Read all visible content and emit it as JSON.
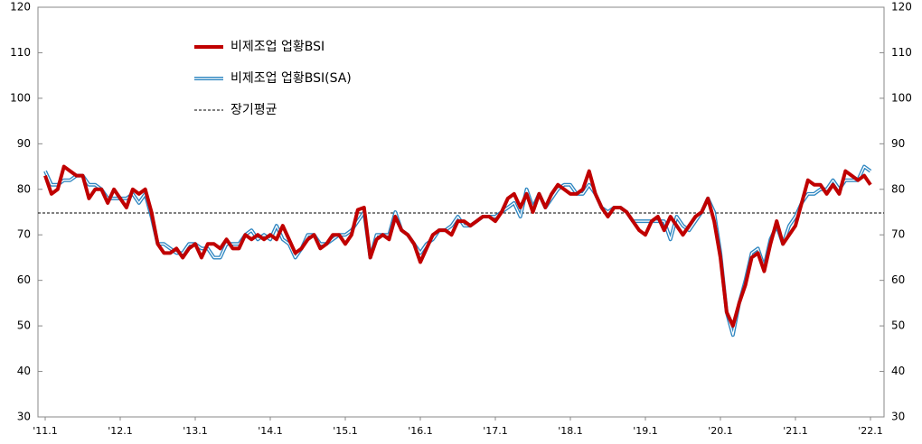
{
  "chart_data": {
    "type": "line",
    "categories": [
      "'11.1",
      null,
      null,
      null,
      null,
      null,
      null,
      null,
      null,
      null,
      null,
      null,
      "'12.1",
      null,
      null,
      null,
      null,
      null,
      null,
      null,
      null,
      null,
      null,
      null,
      "'13.1",
      null,
      null,
      null,
      null,
      null,
      null,
      null,
      null,
      null,
      null,
      null,
      "'14.1",
      null,
      null,
      null,
      null,
      null,
      null,
      null,
      null,
      null,
      null,
      null,
      "'15.1",
      null,
      null,
      null,
      null,
      null,
      null,
      null,
      null,
      null,
      null,
      null,
      "'16.1",
      null,
      null,
      null,
      null,
      null,
      null,
      null,
      null,
      null,
      null,
      null,
      "'17.1",
      null,
      null,
      null,
      null,
      null,
      null,
      null,
      null,
      null,
      null,
      null,
      "'18.1",
      null,
      null,
      null,
      null,
      null,
      null,
      null,
      null,
      null,
      null,
      null,
      "'19.1",
      null,
      null,
      null,
      null,
      null,
      null,
      null,
      null,
      null,
      null,
      null,
      "'20.1",
      null,
      null,
      null,
      null,
      null,
      null,
      null,
      null,
      null,
      null,
      null,
      "'21.1",
      null,
      null,
      null,
      null,
      null,
      null,
      null,
      null,
      null,
      null,
      null,
      "'22.1"
    ],
    "series": [
      {
        "name": "비제조업 업황BSI(SA)",
        "color": "#2e86c1",
        "values": [
          84,
          81,
          81,
          82,
          82,
          83,
          83,
          81,
          81,
          80,
          78,
          78,
          78,
          78,
          79,
          77,
          79,
          74,
          68,
          68,
          67,
          66,
          66,
          68,
          68,
          67,
          67,
          65,
          65,
          68,
          68,
          68,
          70,
          71,
          69,
          70,
          69,
          72,
          69,
          68,
          65,
          67,
          70,
          70,
          68,
          68,
          69,
          70,
          70,
          71,
          73,
          75,
          65,
          70,
          70,
          70,
          75,
          71,
          70,
          68,
          66,
          68,
          69,
          71,
          71,
          72,
          74,
          72,
          72,
          73,
          74,
          74,
          74,
          75,
          76,
          77,
          74,
          80,
          76,
          79,
          76,
          78,
          80,
          81,
          81,
          79,
          79,
          81,
          79,
          76,
          75,
          76,
          76,
          75,
          73,
          73,
          73,
          73,
          73,
          73,
          69,
          74,
          72,
          71,
          73,
          75,
          78,
          75,
          66,
          53,
          48,
          55,
          60,
          66,
          67,
          63,
          69,
          72,
          68,
          72,
          74,
          77,
          79,
          79,
          80,
          80,
          82,
          80,
          82,
          82,
          82,
          85,
          84
        ]
      },
      {
        "name": "비제조업 업황BSI",
        "color": "#c00000",
        "values": [
          83,
          79,
          80,
          85,
          84,
          83,
          83,
          78,
          80,
          80,
          77,
          80,
          78,
          76,
          80,
          79,
          80,
          75,
          68,
          66,
          66,
          67,
          65,
          67,
          68,
          65,
          68,
          68,
          67,
          69,
          67,
          67,
          70,
          69,
          70,
          69,
          70,
          69,
          72,
          69,
          66,
          67,
          69,
          70,
          67,
          68,
          70,
          70,
          68,
          70,
          75.5,
          76,
          65,
          69,
          70,
          69,
          74,
          71,
          70,
          68,
          64,
          67,
          70,
          71,
          71,
          70,
          73,
          73,
          72,
          73,
          74,
          74,
          73,
          75,
          78,
          79,
          76,
          79,
          75,
          79,
          76,
          79,
          81,
          80,
          79,
          79,
          80,
          84,
          79,
          76,
          74,
          76,
          76,
          75,
          73,
          71,
          70,
          73,
          74,
          71,
          74,
          72,
          70,
          72,
          74,
          75,
          78,
          73,
          65,
          53,
          50,
          55,
          59,
          65,
          66,
          62,
          68,
          73,
          68,
          70,
          72,
          77,
          82,
          81,
          81,
          79,
          81,
          79,
          84,
          83,
          82,
          83,
          81
        ]
      }
    ],
    "average": {
      "name": "장기평균",
      "value": 74.8
    },
    "ylim": [
      30,
      120
    ],
    "yticks": [
      30,
      40,
      50,
      60,
      70,
      80,
      90,
      100,
      110,
      120
    ],
    "y2lim": [
      30,
      120
    ],
    "y2ticks": [
      30,
      40,
      50,
      60,
      70,
      80,
      90,
      100,
      110,
      120
    ]
  }
}
